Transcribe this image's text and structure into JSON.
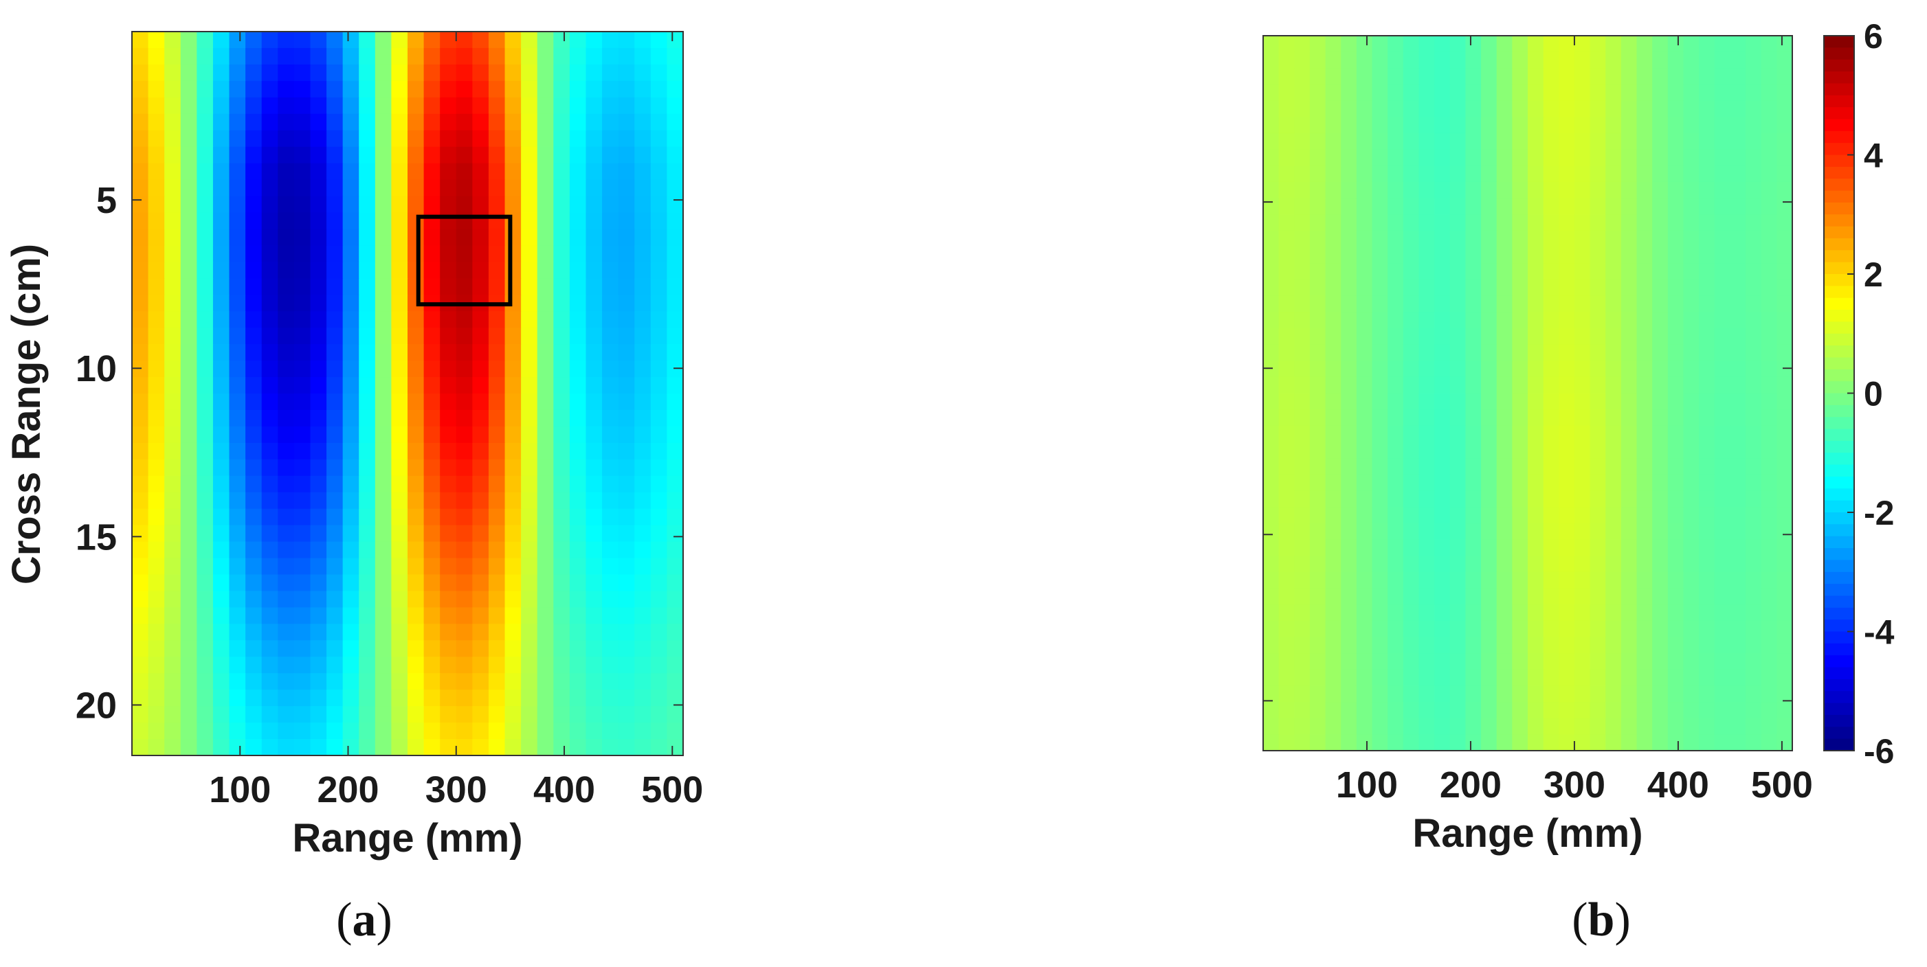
{
  "chart_data": [
    {
      "type": "heatmap",
      "panel_label": "a",
      "xlabel": "Range (mm)",
      "ylabel": "Cross Range (cm)",
      "xlim": [
        0,
        510
      ],
      "ylim": [
        0,
        21.5
      ],
      "y_reversed": true,
      "xticks": [
        100,
        200,
        300,
        400,
        500
      ],
      "yticks": [
        5,
        10,
        15,
        20
      ],
      "clim": [
        -6,
        6
      ],
      "colormap": "jet",
      "grid": false,
      "x_profile": {
        "x": [
          0,
          30,
          60,
          90,
          120,
          150,
          180,
          210,
          240,
          270,
          300,
          330,
          360,
          390,
          420,
          450,
          480,
          510
        ],
        "values": [
          2.8,
          1.8,
          -0.5,
          -3.2,
          -5.0,
          -5.6,
          -4.8,
          -2.5,
          1.0,
          4.2,
          5.6,
          4.8,
          2.2,
          -0.8,
          -2.0,
          -2.6,
          -2.2,
          -1.6
        ]
      },
      "y_envelope": {
        "y": [
          0,
          2,
          4,
          6,
          8,
          10,
          12,
          14,
          16,
          18,
          20,
          21.5
        ],
        "scale": [
          0.72,
          0.85,
          0.97,
          1.0,
          0.98,
          0.92,
          0.84,
          0.74,
          0.62,
          0.5,
          0.4,
          0.34
        ]
      },
      "annotation": {
        "type": "box",
        "x": [
          265,
          350
        ],
        "y": [
          5.5,
          8.1
        ]
      }
    },
    {
      "type": "heatmap",
      "panel_label": "b",
      "xlabel": "Range (mm)",
      "ylabel": "",
      "xlim": [
        0,
        510
      ],
      "ylim": [
        0,
        21.5
      ],
      "y_reversed": true,
      "xticks": [
        100,
        200,
        300,
        400,
        500
      ],
      "yticks": [
        5,
        10,
        15,
        20
      ],
      "show_ytick_labels": false,
      "clim": [
        -6,
        6
      ],
      "colormap": "jet",
      "grid": false,
      "x_profile": {
        "x": [
          0,
          30,
          60,
          90,
          120,
          150,
          180,
          210,
          240,
          270,
          300,
          330,
          360,
          390,
          420,
          450,
          480,
          510
        ],
        "values": [
          0.6,
          0.8,
          0.5,
          0.0,
          -0.4,
          -0.7,
          -0.8,
          -0.4,
          0.3,
          1.0,
          1.1,
          0.8,
          0.3,
          -0.2,
          -0.4,
          -0.5,
          -0.4,
          -0.3
        ]
      },
      "y_envelope": {
        "y": [
          0,
          2,
          4,
          6,
          8,
          10,
          12,
          14,
          16,
          18,
          20,
          21.5
        ],
        "scale": [
          1.0,
          1.0,
          0.95,
          0.9,
          0.9,
          0.95,
          1.0,
          1.0,
          0.95,
          0.9,
          0.85,
          0.8
        ]
      },
      "colorbar": {
        "ticks": [
          6,
          4,
          2,
          0,
          -2,
          -4,
          -6
        ],
        "range": [
          -6,
          6
        ]
      }
    }
  ],
  "labels": {
    "panel_a": {
      "open": "(",
      "letter": "a",
      "close": ")"
    },
    "panel_b": {
      "open": "(",
      "letter": "b",
      "close": ")"
    }
  }
}
